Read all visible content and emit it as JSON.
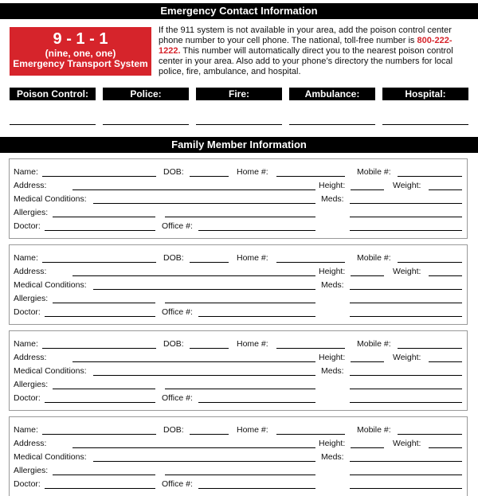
{
  "emergency": {
    "title": "Emergency Contact Information",
    "badge": {
      "number": "9 - 1 - 1",
      "spelled": "(nine, one, one)",
      "caption": "Emergency Transport System"
    },
    "intro_before": "If the 911 system is not available in your area, add the poison control center phone number to your cell phone. The national, toll-free number is ",
    "phone": "800-222-1222.",
    "intro_after": " This number will automatically direct you to the nearest poison control center in your area. Also add to your phone’s directory the numbers for local police, fire, ambulance, and hospital.",
    "contacts": [
      "Poison Control:",
      "Police:",
      "Fire:",
      "Ambulance:",
      "Hospital:"
    ],
    "accent_color": "#d6242b"
  },
  "family": {
    "title": "Family Member Information",
    "labels": {
      "name": "Name:",
      "dob": "DOB:",
      "home": "Home #:",
      "mobile": "Mobile #:",
      "address": "Address:",
      "height": "Height:",
      "weight": "Weight:",
      "medical": "Medical Conditions:",
      "meds": "Meds:",
      "allergies": "Allergies:",
      "doctor": "Doctor:",
      "office": "Office #:"
    },
    "card_count": 4
  }
}
